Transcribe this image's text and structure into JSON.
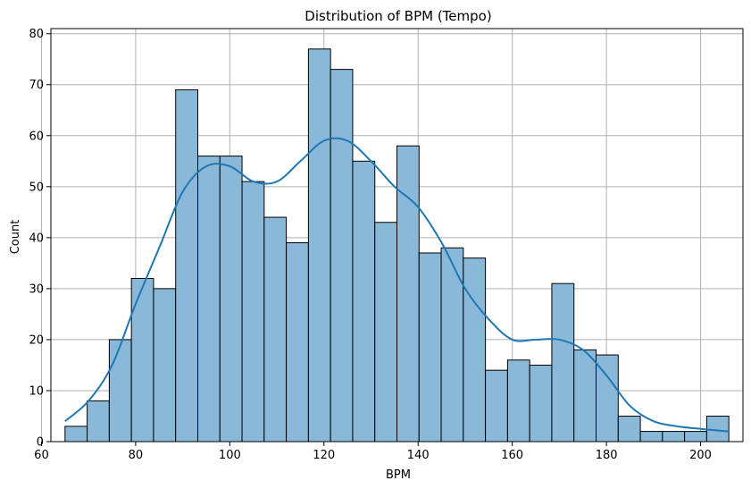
{
  "chart_data": {
    "type": "bar",
    "title": "Distribution of BPM (Tempo)",
    "xlabel": "BPM",
    "ylabel": "Count",
    "xlim": [
      62.0,
      209.0
    ],
    "ylim": [
      0,
      81
    ],
    "xticks": [
      60,
      80,
      100,
      120,
      140,
      160,
      180,
      200
    ],
    "yticks": [
      0,
      10,
      20,
      30,
      40,
      50,
      60,
      70,
      80
    ],
    "grid": true,
    "legend": "none",
    "bin_start": 65,
    "bin_width": 4.7,
    "counts": [
      3,
      8,
      20,
      32,
      30,
      69,
      56,
      56,
      51,
      44,
      39,
      77,
      73,
      55,
      43,
      58,
      37,
      38,
      36,
      14,
      16,
      15,
      31,
      18,
      17,
      5,
      2,
      2,
      2,
      5
    ],
    "kde": {
      "x": [
        65,
        70,
        75,
        80,
        85,
        90,
        95,
        100,
        105,
        110,
        115,
        120,
        125,
        130,
        135,
        140,
        145,
        150,
        155,
        160,
        165,
        170,
        175,
        180,
        185,
        190,
        195,
        200,
        206
      ],
      "y": [
        4,
        8,
        15,
        27,
        38,
        49,
        54,
        54,
        51,
        51,
        55,
        59,
        59,
        55,
        50,
        46,
        39,
        30,
        24,
        20,
        20,
        20,
        18,
        13,
        7,
        4,
        3,
        2.5,
        2
      ]
    }
  }
}
